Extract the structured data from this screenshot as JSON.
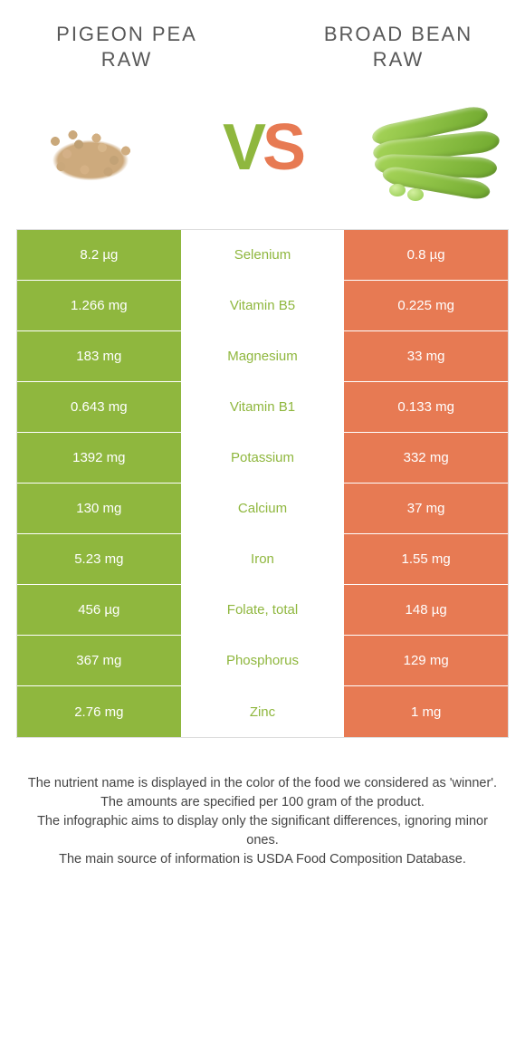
{
  "header": {
    "left_title": "PIGEON PEA RAW",
    "right_title": "BROAD BEAN RAW",
    "vs_v": "V",
    "vs_s": "S"
  },
  "colors": {
    "left": "#8fb73e",
    "right": "#e77a53",
    "mid_bg": "#ffffff",
    "title_color": "#585858",
    "cell_text": "#ffffff",
    "border": "#dddddd"
  },
  "rows": [
    {
      "left": "8.2 µg",
      "label": "Selenium",
      "right": "0.8 µg",
      "winner_color": "#8fb73e"
    },
    {
      "left": "1.266 mg",
      "label": "Vitamin B5",
      "right": "0.225 mg",
      "winner_color": "#8fb73e"
    },
    {
      "left": "183 mg",
      "label": "Magnesium",
      "right": "33 mg",
      "winner_color": "#8fb73e"
    },
    {
      "left": "0.643 mg",
      "label": "Vitamin B1",
      "right": "0.133 mg",
      "winner_color": "#8fb73e"
    },
    {
      "left": "1392 mg",
      "label": "Potassium",
      "right": "332 mg",
      "winner_color": "#8fb73e"
    },
    {
      "left": "130 mg",
      "label": "Calcium",
      "right": "37 mg",
      "winner_color": "#8fb73e"
    },
    {
      "left": "5.23 mg",
      "label": "Iron",
      "right": "1.55 mg",
      "winner_color": "#8fb73e"
    },
    {
      "left": "456 µg",
      "label": "Folate, total",
      "right": "148 µg",
      "winner_color": "#8fb73e"
    },
    {
      "left": "367 mg",
      "label": "Phosphorus",
      "right": "129 mg",
      "winner_color": "#8fb73e"
    },
    {
      "left": "2.76 mg",
      "label": "Zinc",
      "right": "1 mg",
      "winner_color": "#8fb73e"
    }
  ],
  "footer": {
    "line1": "The nutrient name is displayed in the color of the food we considered as 'winner'.",
    "line2": "The amounts are specified per 100 gram of the product.",
    "line3": "The infographic aims to display only the significant differences, ignoring minor ones.",
    "line4": "The main source of information is USDA Food Composition Database."
  }
}
